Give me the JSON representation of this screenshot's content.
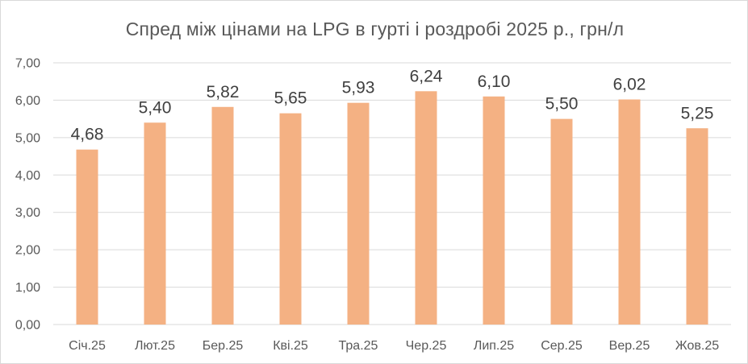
{
  "chart_data": {
    "type": "bar",
    "title": "Спред між цінами на LPG в гурті і роздробі 2025 р., грн/л",
    "categories": [
      "Січ.25",
      "Лют.25",
      "Бер.25",
      "Кві.25",
      "Тра.25",
      "Чер.25",
      "Лип.25",
      "Сер.25",
      "Вер.25",
      "Жов.25"
    ],
    "values": [
      4.68,
      5.4,
      5.82,
      5.65,
      5.93,
      6.24,
      6.1,
      5.5,
      6.02,
      5.25
    ],
    "data_labels": [
      "4,68",
      "5,40",
      "5,82",
      "5,65",
      "5,93",
      "6,24",
      "6,10",
      "5,50",
      "6,02",
      "5,25"
    ],
    "y_ticks": [
      "0,00",
      "1,00",
      "2,00",
      "3,00",
      "4,00",
      "5,00",
      "6,00",
      "7,00"
    ],
    "ylim": [
      0,
      7
    ],
    "grid": true,
    "legend": "none",
    "bar_color": "#F4B183",
    "grid_color": "#d9d9d9"
  }
}
